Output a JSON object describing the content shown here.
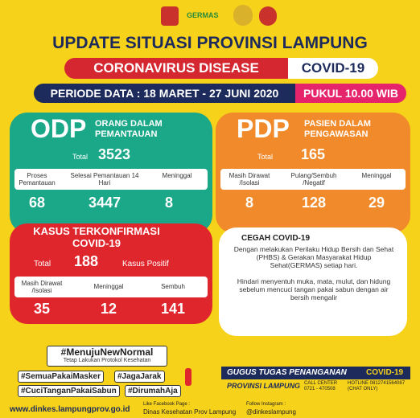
{
  "header": {
    "logo_text": "GERMAS",
    "title": "UPDATE SITUASI PROVINSI LAMPUNG",
    "disease": "CORONAVIRUS DISEASE",
    "covid": "COVID-19",
    "period": "PERIODE DATA : 18 MARET - 27 JUNI 2020",
    "time": "PUKUL 10.00 WIB"
  },
  "odp": {
    "abbr": "ODP",
    "name": [
      "ORANG DALAM",
      "PEMANTAUAN"
    ],
    "total_label": "Total",
    "total": "3523",
    "columns": [
      {
        "label": "Proses Pemantauan",
        "value": "68"
      },
      {
        "label": "Selesai Pemantauan 14 Hari",
        "value": "3447"
      },
      {
        "label": "Meninggal",
        "value": "8"
      }
    ]
  },
  "pdp": {
    "abbr": "PDP",
    "name": [
      "PASIEN DALAM",
      "PENGAWASAN"
    ],
    "total_label": "Total",
    "total": "165",
    "columns": [
      {
        "label": "Masih Dirawat /Isolasi",
        "value": "8"
      },
      {
        "label": "Pulang/Sembuh /Negatif",
        "value": "128"
      },
      {
        "label": "Meninggal",
        "value": "29"
      }
    ]
  },
  "kasus": {
    "title": [
      "KASUS TERKONFIRMASI",
      "COVID-19"
    ],
    "total_label": "Total",
    "total": "188",
    "total_note": "Kasus Positif",
    "columns": [
      {
        "label": "Masih Dirawat /Isolasi",
        "value": "35"
      },
      {
        "label": "Meninggal",
        "value": "12"
      },
      {
        "label": "Sembuh",
        "value": "141"
      }
    ]
  },
  "cegah": {
    "title": "CEGAH COVID-19",
    "paragraphs": [
      "Dengan melakukan Perilaku Hidup Bersih dan Sehat (PHBS) & Gerakan Masyarakat Hidup Sehat(GERMAS) setiap hari.",
      "Hindari menyentuh muka, mata, mulut, dan hidung sebelum mencuci tangan pakai sabun dengan air bersih mengalir"
    ]
  },
  "hashtags": {
    "main": "#MenujuNewNormal",
    "sub": "Tetap Lakukan Protokol Kesehatan",
    "tags": [
      "#SemuaPakaiMasker",
      "#JagaJarak",
      "#CuciTanganPakaiSabun",
      "#DirumahAja"
    ]
  },
  "gugus": {
    "title": "GUGUS TUGAS PENANGANAN",
    "covid": "COVID-19",
    "province": "PROVINSI LAMPUNG",
    "call_center": "CALL CENTER 0721 - 470508",
    "hotline": "HOTLINE 0812741564087 (CHAT ONLY)"
  },
  "footer": {
    "website": "www.dinkes.lampungprov.go.id",
    "fb_label": "Like Facebook Page :",
    "fb": "Dinas Kesehatan Prov Lampung",
    "ig_label": "Follow Instagram :",
    "ig": "@dinkeslampung"
  }
}
